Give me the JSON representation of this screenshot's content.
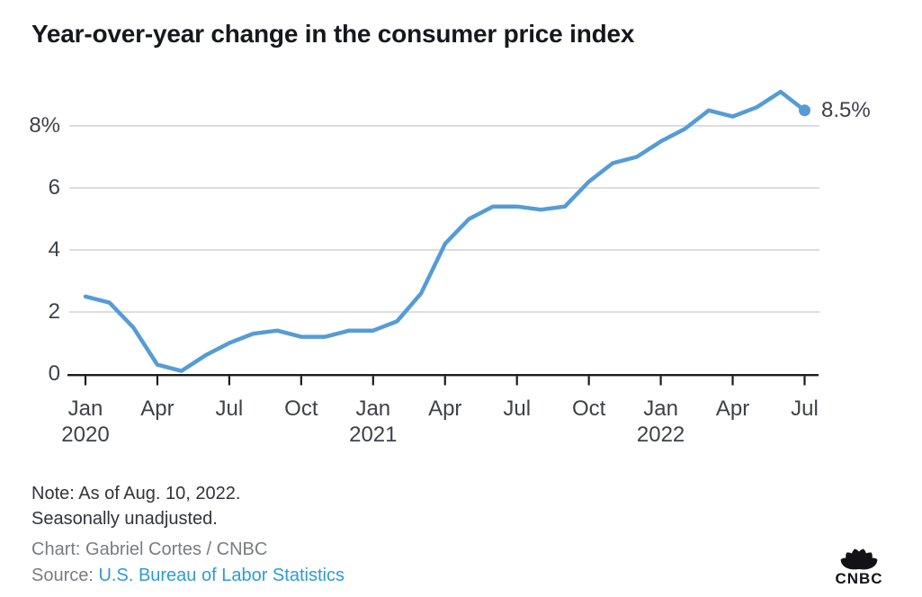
{
  "header": {
    "title": "Year-over-year change in the consumer price index"
  },
  "colors": {
    "line": "#559cd6",
    "grid": "#d2d2d2",
    "axis": "#1b1b1f",
    "tick": "#3e4247",
    "title": "#16181d",
    "note": "#323438",
    "credit": "#797c80",
    "link": "#2f9bd6"
  },
  "chart_data": {
    "type": "line",
    "title": "Year-over-year change in the consumer price index",
    "unit": "%",
    "x": [
      "Jan 2020",
      "Feb 2020",
      "Mar 2020",
      "Apr 2020",
      "May 2020",
      "Jun 2020",
      "Jul 2020",
      "Aug 2020",
      "Sep 2020",
      "Oct 2020",
      "Nov 2020",
      "Dec 2020",
      "Jan 2021",
      "Feb 2021",
      "Mar 2021",
      "Apr 2021",
      "May 2021",
      "Jun 2021",
      "Jul 2021",
      "Aug 2021",
      "Sep 2021",
      "Oct 2021",
      "Nov 2021",
      "Dec 2021",
      "Jan 2022",
      "Feb 2022",
      "Mar 2022",
      "Apr 2022",
      "May 2022",
      "Jun 2022",
      "Jul 2022"
    ],
    "values": [
      2.5,
      2.3,
      1.5,
      0.3,
      0.1,
      0.6,
      1.0,
      1.3,
      1.4,
      1.2,
      1.2,
      1.4,
      1.4,
      1.7,
      2.6,
      4.2,
      5.0,
      5.4,
      5.4,
      5.3,
      5.4,
      6.2,
      6.8,
      7.0,
      7.5,
      7.9,
      8.5,
      8.3,
      8.6,
      9.1,
      8.5
    ],
    "ylim": [
      0,
      9.5
    ],
    "yticks": [
      {
        "value": 0,
        "label": "0"
      },
      {
        "value": 2,
        "label": "2"
      },
      {
        "value": 4,
        "label": "4"
      },
      {
        "value": 6,
        "label": "6"
      },
      {
        "value": 8,
        "label": "8%"
      }
    ],
    "xticks": [
      {
        "index": 0,
        "label": "Jan",
        "year": "2020"
      },
      {
        "index": 3,
        "label": "Apr"
      },
      {
        "index": 6,
        "label": "Jul"
      },
      {
        "index": 9,
        "label": "Oct"
      },
      {
        "index": 12,
        "label": "Jan",
        "year": "2021"
      },
      {
        "index": 15,
        "label": "Apr"
      },
      {
        "index": 18,
        "label": "Jul"
      },
      {
        "index": 21,
        "label": "Oct"
      },
      {
        "index": 24,
        "label": "Jan",
        "year": "2022"
      },
      {
        "index": 27,
        "label": "Apr"
      },
      {
        "index": 30,
        "label": "Jul"
      }
    ],
    "end_label": "8.5%",
    "grid": "horizontal-only",
    "legend": "none",
    "line_color": "#559cd6"
  },
  "footer": {
    "note_line1": "Note: As of Aug. 10, 2022.",
    "note_line2": "Seasonally unadjusted.",
    "credit": "Chart: Gabriel Cortes / CNBC",
    "source_prefix": "Source: ",
    "source_link": "U.S. Bureau of Labor Statistics",
    "logo": "CNBC"
  }
}
